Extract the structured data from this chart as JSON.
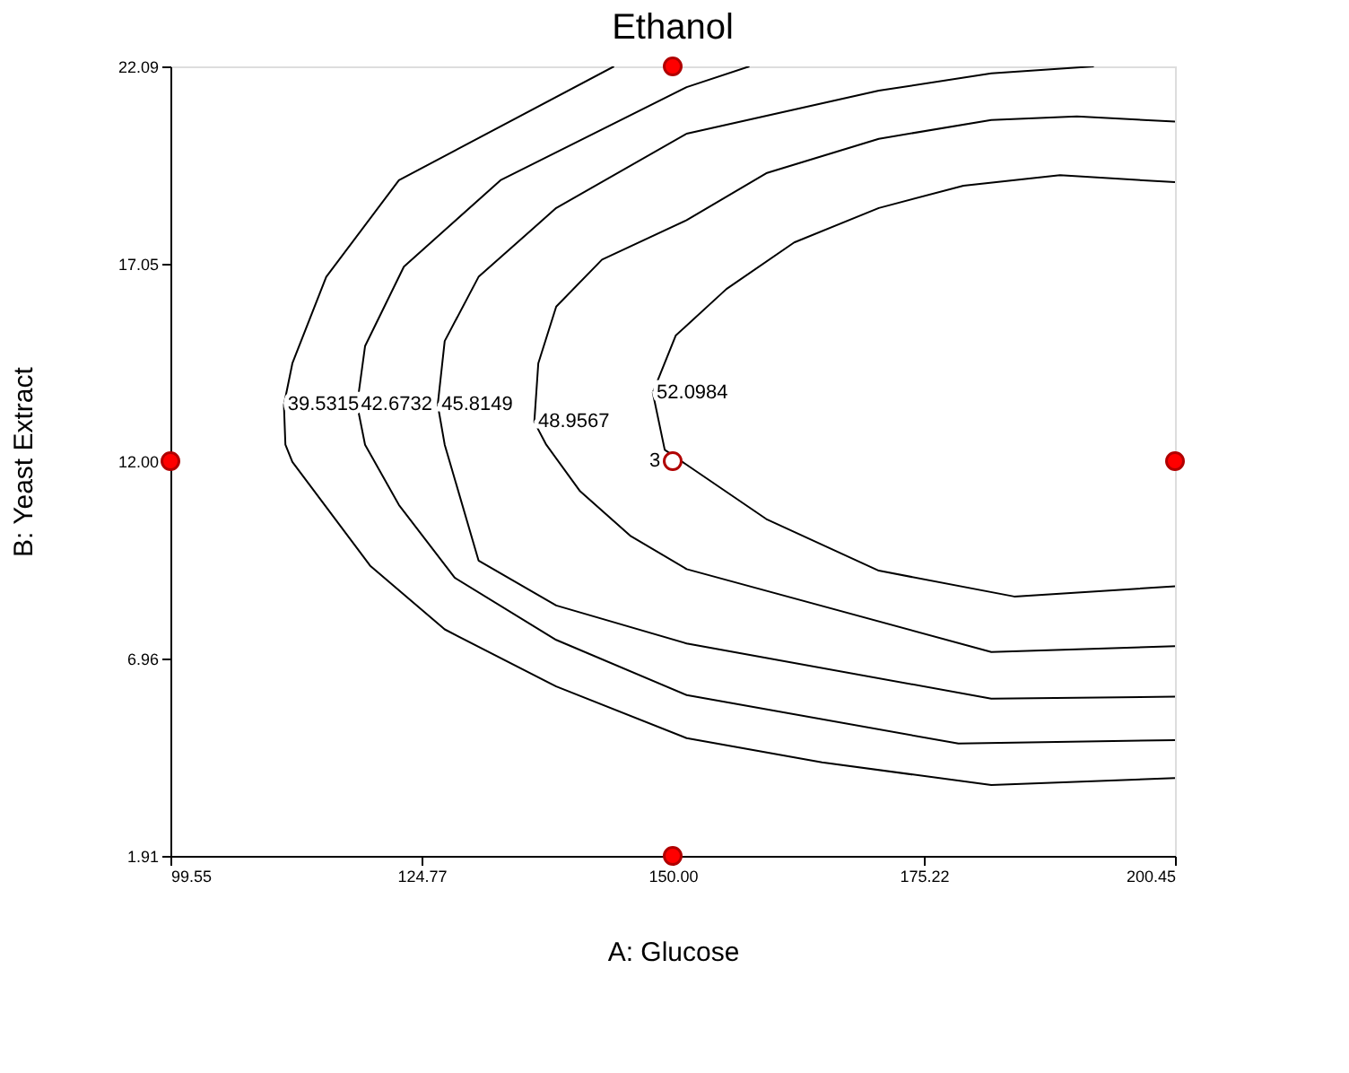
{
  "chart_data": {
    "type": "line",
    "title": "Ethanol",
    "xlabel": "A: Glucose",
    "ylabel": "B: Yeast Extract",
    "xlim": [
      99.55,
      200.45
    ],
    "ylim": [
      1.91,
      22.09
    ],
    "xticks": [
      99.55,
      124.77,
      {
        "value": 150,
        "label": "150.00"
      },
      175.22,
      200.45
    ],
    "yticks": [
      1.91,
      6.96,
      {
        "value": 12,
        "label": "12.00"
      },
      17.05,
      22.09
    ],
    "series": [
      {
        "name": "39.5315",
        "color": "#000000",
        "x": [
          144.1,
          122.5,
          115.2,
          111.8,
          110.95,
          111.1,
          111.8,
          119.6,
          127.1,
          138.3,
          151.4,
          165.0,
          182.0,
          200.45
        ],
        "values": [
          22.09,
          19.18,
          16.71,
          14.5,
          13.44,
          12.42,
          11.98,
          9.33,
          7.7,
          6.24,
          4.92,
          4.3,
          3.72,
          3.9
        ]
      },
      {
        "name": "42.6732",
        "color": "#000000",
        "x": [
          157.7,
          151.4,
          132.7,
          123.0,
          119.1,
          118.3,
          119.1,
          122.5,
          128.1,
          138.3,
          151.4,
          178.7,
          200.45
        ],
        "values": [
          22.09,
          21.56,
          19.18,
          16.97,
          14.94,
          13.44,
          12.42,
          10.88,
          9.02,
          7.43,
          6.02,
          4.78,
          4.87
        ]
      },
      {
        "name": "45.8149",
        "color": "#000000",
        "x": [
          192.3,
          182.0,
          170.7,
          151.4,
          138.3,
          130.5,
          127.1,
          126.4,
          127.1,
          130.5,
          138.3,
          151.4,
          182.0,
          200.45
        ],
        "values": [
          22.09,
          21.91,
          21.47,
          20.37,
          18.47,
          16.71,
          15.07,
          13.44,
          12.42,
          9.46,
          8.31,
          7.34,
          5.93,
          5.98
        ]
      },
      {
        "name": "48.9567",
        "color": "#000000",
        "x": [
          200.45,
          190.6,
          182.0,
          170.7,
          159.4,
          151.4,
          142.9,
          138.3,
          136.5,
          136.1,
          137.3,
          140.7,
          145.8,
          151.4,
          182.0,
          200.45
        ],
        "values": [
          20.68,
          20.81,
          20.72,
          20.24,
          19.36,
          18.16,
          17.15,
          15.95,
          14.5,
          13.0,
          12.42,
          11.23,
          10.08,
          9.24,
          7.12,
          7.27
        ]
      },
      {
        "name": "52.0984",
        "color": "#000000",
        "x": [
          200.45,
          188.9,
          179.2,
          170.7,
          162.2,
          155.4,
          150.3,
          148.0,
          149.2,
          159.4,
          170.7,
          184.3,
          200.45
        ],
        "values": [
          19.13,
          19.31,
          19.04,
          18.47,
          17.59,
          16.4,
          15.21,
          13.75,
          12.29,
          10.52,
          9.2,
          8.54,
          8.8
        ]
      },
      {
        "type": "scatter",
        "color": "#b00000",
        "colors": [
          "#ff0000",
          "#ff0000",
          "#ff0000",
          "#ff0000",
          "#ffffff"
        ],
        "x": [
          99.55,
          150,
          150,
          200.45,
          150
        ],
        "values": [
          12,
          22.09,
          1.91,
          12,
          12
        ]
      }
    ],
    "annotations": [
      {
        "text": "3",
        "x": 150,
        "y": 12
      }
    ]
  }
}
